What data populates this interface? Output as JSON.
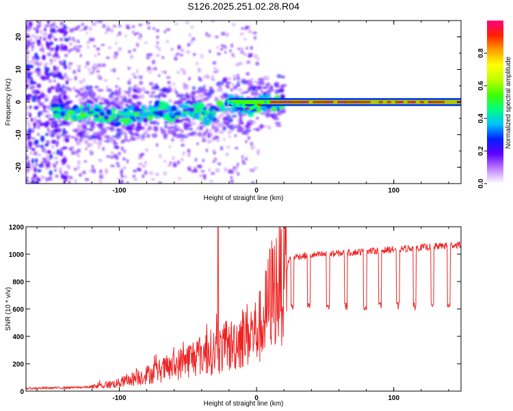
{
  "title": "S126.2025.251.02.28.R04",
  "chart_data": [
    {
      "type": "heatmap",
      "xlabel": "Height of straight line (km)",
      "ylabel": "Frequency (Hz)",
      "xlim": [
        -168,
        149
      ],
      "ylim": [
        -25,
        25
      ],
      "xticks": [
        -100,
        0,
        100
      ],
      "yticks": [
        -20,
        -10,
        0,
        10,
        20
      ],
      "colorbar": {
        "label": "Normalized spectral amplitude",
        "range": [
          0,
          1
        ],
        "ticks": [
          "0.0",
          "0.2",
          "0.4",
          "0.6",
          "0.8"
        ],
        "colors": [
          "#ffffff",
          "#c080ff",
          "#6000ff",
          "#0020ff",
          "#00c0ff",
          "#00ff80",
          "#40ff00",
          "#c0ff00",
          "#ffff00",
          "#ffa000",
          "#ff2000",
          "#ff0080"
        ]
      },
      "ridge": {
        "x": [
          -150,
          -140,
          -130,
          -120,
          -110,
          -100,
          -90,
          -80,
          -70,
          -60,
          -50,
          -40,
          -35,
          -30,
          -25,
          -20,
          -15,
          -10,
          -7,
          -4,
          0,
          5,
          10,
          20,
          149
        ],
        "freq": [
          -2.5,
          -3,
          -4,
          -3,
          -4,
          -5,
          -3.5,
          -3.5,
          -2,
          -4,
          -2,
          -3,
          -5,
          -3,
          -1,
          0,
          -1,
          -1,
          -2,
          -2,
          -1,
          0,
          0,
          0,
          0
        ]
      }
    },
    {
      "type": "line",
      "xlabel": "Height of straight line (km)",
      "ylabel": "SNR (10 * v/v)",
      "xlim": [
        -168,
        149
      ],
      "ylim": [
        0,
        1200
      ],
      "xticks": [
        -100,
        0,
        100
      ],
      "yticks": [
        0,
        200,
        400,
        600,
        800,
        1000,
        1200
      ],
      "color": "#ee2222",
      "envelope": {
        "x": [
          -168,
          -140,
          -120,
          -100,
          -80,
          -60,
          -50,
          -40,
          -30,
          -20,
          -10,
          0,
          5,
          10,
          20,
          25,
          149
        ],
        "y": [
          20,
          25,
          30,
          60,
          120,
          180,
          230,
          270,
          290,
          320,
          400,
          440,
          500,
          700,
          850,
          980,
          1070
        ]
      },
      "spike": {
        "x": -28,
        "y": 1200
      },
      "dips": {
        "x": [
          25,
          37,
          51,
          64,
          78,
          89,
          102,
          114,
          127,
          139
        ],
        "y": 620
      }
    }
  ]
}
